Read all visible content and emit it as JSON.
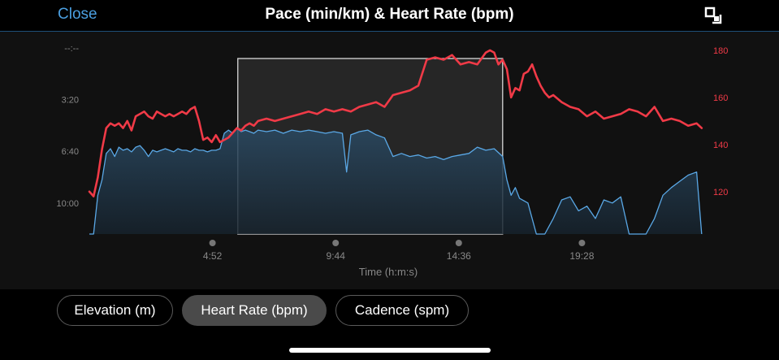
{
  "header": {
    "close_label": "Close",
    "title": "Pace (min/km) & Heart Rate (bpm)",
    "expand_icon": "expand-icon"
  },
  "tabs": [
    {
      "label": "Elevation (m)",
      "active": false
    },
    {
      "label": "Heart Rate (bpm)",
      "active": true
    },
    {
      "label": "Cadence (spm)",
      "active": false
    }
  ],
  "colors": {
    "pace": "#5aa8e6",
    "heart_rate": "#f03a47",
    "background": "#111111",
    "selection": "#2e2e2e",
    "accent": "#4b9fe0"
  },
  "chart_data": {
    "type": "line",
    "xlabel": "Time (h:m:s)",
    "x_tick_labels": [
      "4:52",
      "9:44",
      "14:36",
      "19:28"
    ],
    "x_ticks_seconds": [
      292,
      584,
      876,
      1168
    ],
    "xlim_seconds": [
      0,
      1460
    ],
    "left_axis": {
      "label": "Pace (min/km)",
      "tick_labels": [
        "--:--",
        "3:20",
        "6:40",
        "10:00"
      ],
      "tick_minutes": [
        0,
        3.333,
        6.667,
        10.0
      ],
      "reversed": true,
      "ylim_minutes": [
        0,
        12
      ]
    },
    "right_axis": {
      "label": "Heart Rate (bpm)",
      "tick_labels": [
        "180",
        "160",
        "140",
        "120"
      ],
      "tick_values": [
        180,
        160,
        140,
        120
      ],
      "ylim": [
        102,
        181
      ]
    },
    "selection_range_seconds": [
      352,
      980
    ],
    "series": [
      {
        "name": "Heart Rate",
        "axis": "right",
        "x": [
          0,
          10,
          20,
          30,
          40,
          50,
          60,
          70,
          80,
          90,
          100,
          110,
          120,
          130,
          140,
          150,
          160,
          170,
          180,
          190,
          200,
          210,
          220,
          230,
          240,
          250,
          260,
          270,
          280,
          290,
          300,
          310,
          320,
          330,
          340,
          350,
          360,
          370,
          380,
          390,
          400,
          420,
          440,
          460,
          480,
          500,
          520,
          540,
          560,
          580,
          600,
          620,
          640,
          660,
          680,
          700,
          720,
          740,
          760,
          780,
          800,
          820,
          840,
          860,
          880,
          900,
          920,
          940,
          950,
          960,
          970,
          980,
          990,
          1000,
          1010,
          1020,
          1030,
          1040,
          1050,
          1060,
          1070,
          1080,
          1090,
          1100,
          1120,
          1140,
          1160,
          1180,
          1200,
          1220,
          1240,
          1260,
          1280,
          1300,
          1320,
          1340,
          1360,
          1380,
          1400,
          1420,
          1440,
          1452
        ],
        "y": [
          120,
          118,
          126,
          138,
          147,
          149,
          148,
          149,
          147,
          150,
          146,
          152,
          153,
          154,
          152,
          151,
          154,
          153,
          152,
          153,
          152,
          153,
          154,
          153,
          155,
          156,
          150,
          142,
          143,
          141,
          144,
          141,
          142,
          143,
          145,
          147,
          146,
          148,
          149,
          148,
          150,
          151,
          150,
          151,
          152,
          153,
          154,
          153,
          155,
          154,
          155,
          154,
          156,
          157,
          158,
          156,
          161,
          162,
          163,
          165,
          176,
          177,
          176,
          178,
          174,
          175,
          174,
          179,
          180,
          179,
          174,
          176,
          172,
          160,
          164,
          163,
          170,
          171,
          174,
          169,
          165,
          162,
          160,
          161,
          158,
          156,
          155,
          152,
          154,
          151,
          152,
          153,
          155,
          154,
          152,
          156,
          150,
          151,
          150,
          148,
          149,
          147
        ]
      },
      {
        "name": "Pace",
        "axis": "left",
        "x": [
          0,
          10,
          20,
          30,
          40,
          50,
          60,
          70,
          80,
          90,
          100,
          110,
          120,
          130,
          140,
          150,
          160,
          170,
          180,
          190,
          200,
          210,
          220,
          230,
          240,
          250,
          260,
          270,
          280,
          290,
          300,
          310,
          320,
          330,
          340,
          350,
          360,
          370,
          380,
          390,
          400,
          420,
          440,
          460,
          480,
          500,
          520,
          540,
          560,
          580,
          600,
          610,
          620,
          630,
          640,
          660,
          680,
          700,
          720,
          740,
          760,
          780,
          800,
          820,
          840,
          860,
          880,
          900,
          920,
          940,
          960,
          980,
          990,
          1000,
          1010,
          1020,
          1040,
          1060,
          1080,
          1100,
          1120,
          1140,
          1160,
          1180,
          1200,
          1220,
          1240,
          1260,
          1280,
          1300,
          1320,
          1340,
          1360,
          1380,
          1400,
          1420,
          1440,
          1452
        ],
        "y": [
          12,
          12,
          9.5,
          8.5,
          6.8,
          6.5,
          7.0,
          6.4,
          6.6,
          6.5,
          6.7,
          6.4,
          6.3,
          6.6,
          7.0,
          6.6,
          6.7,
          6.6,
          6.5,
          6.6,
          6.7,
          6.5,
          6.6,
          6.6,
          6.7,
          6.5,
          6.6,
          6.6,
          6.7,
          6.6,
          6.6,
          6.5,
          5.5,
          5.3,
          5.5,
          5.2,
          5.4,
          5.3,
          5.4,
          5.5,
          5.3,
          5.4,
          5.3,
          5.5,
          5.3,
          5.4,
          5.3,
          5.4,
          5.5,
          5.4,
          5.5,
          8.0,
          5.6,
          5.5,
          5.4,
          5.3,
          5.6,
          5.8,
          7.0,
          6.8,
          7.0,
          6.9,
          7.1,
          7.0,
          7.2,
          7.0,
          6.9,
          6.8,
          6.4,
          6.6,
          6.5,
          7.0,
          8.5,
          9.5,
          9.0,
          9.7,
          10.0,
          12,
          12,
          11.0,
          9.8,
          9.6,
          10.5,
          10.2,
          11.0,
          9.8,
          10.0,
          9.6,
          12,
          12,
          12,
          11.0,
          9.5,
          9.0,
          8.6,
          8.2,
          8.0,
          12
        ]
      }
    ]
  }
}
